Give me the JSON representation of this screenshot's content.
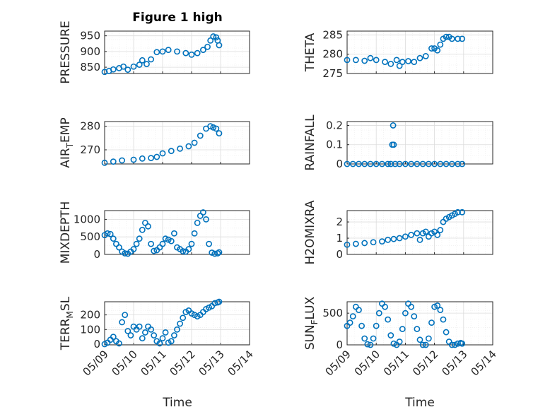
{
  "figure": {
    "title": "Figure 1 high"
  },
  "colors": {
    "marker": "#0072BD",
    "axis": "#262626"
  },
  "x_ticks": [
    "05/09",
    "05/10",
    "05/11",
    "05/12",
    "05/13",
    "05/14"
  ],
  "chart_data": [
    {
      "type": "scatter",
      "ylabel": "PRESSURE",
      "ylim": [
        830,
        965
      ],
      "yticks": [
        850,
        900,
        950
      ],
      "x_range": [
        "05/09",
        "05/14"
      ],
      "grid": true,
      "marker": "circle",
      "x": [
        0,
        0.15,
        0.3,
        0.5,
        0.65,
        0.8,
        1.0,
        1.2,
        1.3,
        1.45,
        1.6,
        1.8,
        2.0,
        2.2,
        2.5,
        2.8,
        3.0,
        3.2,
        3.4,
        3.55,
        3.65,
        3.75,
        3.85,
        3.9,
        3.95
      ],
      "y": [
        835,
        838,
        843,
        847,
        852,
        842,
        852,
        858,
        872,
        860,
        875,
        898,
        900,
        905,
        900,
        895,
        890,
        895,
        905,
        915,
        935,
        948,
        945,
        935,
        920
      ]
    },
    {
      "type": "scatter",
      "ylabel": "THETA",
      "ylim": [
        275,
        286
      ],
      "yticks": [
        275,
        280,
        285
      ],
      "x_range": [
        "05/09",
        "05/14"
      ],
      "grid": true,
      "marker": "circle",
      "x": [
        0,
        0.3,
        0.6,
        0.8,
        1.0,
        1.3,
        1.5,
        1.7,
        1.8,
        1.9,
        2.1,
        2.3,
        2.5,
        2.7,
        2.9,
        3.0,
        3.1,
        3.2,
        3.3,
        3.4,
        3.5,
        3.6,
        3.8,
        3.95
      ],
      "y": [
        278.5,
        278.5,
        278.3,
        279,
        278.5,
        278,
        277.5,
        278.5,
        277,
        278,
        278.2,
        278,
        279,
        279.5,
        281.5,
        281.5,
        281,
        282.5,
        284,
        284.5,
        284.5,
        284,
        284,
        284
      ]
    },
    {
      "type": "scatter",
      "ylabel": "AIR_TEMP",
      "ylim": [
        264,
        282
      ],
      "yticks": [
        270,
        280
      ],
      "x_range": [
        "05/09",
        "05/14"
      ],
      "grid": true,
      "marker": "circle",
      "x": [
        0,
        0.3,
        0.6,
        1.0,
        1.3,
        1.6,
        1.8,
        2.0,
        2.3,
        2.6,
        2.9,
        3.1,
        3.3,
        3.5,
        3.65,
        3.75,
        3.85,
        3.95
      ],
      "y": [
        264.5,
        265,
        265.5,
        265.8,
        266.3,
        266.5,
        267,
        268.5,
        269.5,
        270.5,
        271.5,
        273,
        276,
        279,
        280,
        279.5,
        279,
        277
      ]
    },
    {
      "type": "scatter",
      "ylabel": "RAINFALL",
      "ylim": [
        0,
        0.22
      ],
      "yticks": [
        0,
        0.1,
        0.2
      ],
      "x_range": [
        "05/09",
        "05/14"
      ],
      "grid": true,
      "marker": "circle",
      "x": [
        0,
        0.2,
        0.4,
        0.6,
        0.8,
        1.0,
        1.2,
        1.4,
        1.5,
        1.55,
        1.58,
        1.6,
        1.65,
        1.8,
        2.0,
        2.2,
        2.4,
        2.6,
        2.8,
        3.0,
        3.2,
        3.4,
        3.6,
        3.8,
        3.95
      ],
      "y": [
        0,
        0,
        0,
        0,
        0,
        0,
        0,
        0,
        0,
        0.1,
        0.2,
        0.1,
        0,
        0,
        0,
        0,
        0,
        0,
        0,
        0,
        0,
        0,
        0,
        0,
        0
      ]
    },
    {
      "type": "scatter",
      "ylabel": "MIXDEPTH",
      "ylim": [
        0,
        1250
      ],
      "yticks": [
        0,
        500,
        1000
      ],
      "x_range": [
        "05/09",
        "05/14"
      ],
      "grid": true,
      "marker": "circle",
      "x": [
        0,
        0.1,
        0.2,
        0.3,
        0.4,
        0.5,
        0.6,
        0.7,
        0.8,
        0.9,
        1.0,
        1.1,
        1.2,
        1.3,
        1.4,
        1.5,
        1.6,
        1.7,
        1.8,
        1.9,
        2.0,
        2.1,
        2.2,
        2.3,
        2.4,
        2.5,
        2.6,
        2.7,
        2.8,
        2.9,
        3.0,
        3.1,
        3.2,
        3.3,
        3.4,
        3.5,
        3.6,
        3.7,
        3.8,
        3.9,
        3.95
      ],
      "y": [
        550,
        600,
        580,
        450,
        300,
        200,
        80,
        30,
        20,
        80,
        150,
        300,
        450,
        700,
        900,
        800,
        300,
        100,
        120,
        200,
        300,
        450,
        420,
        380,
        600,
        200,
        150,
        90,
        80,
        150,
        300,
        600,
        900,
        1100,
        1200,
        1000,
        300,
        50,
        20,
        30,
        60
      ]
    },
    {
      "type": "scatter",
      "ylabel": "H2OMIXRA",
      "ylim": [
        0,
        2.7
      ],
      "yticks": [
        0,
        1,
        2
      ],
      "x_range": [
        "05/09",
        "05/14"
      ],
      "grid": true,
      "marker": "circle",
      "x": [
        0,
        0.3,
        0.6,
        0.9,
        1.2,
        1.4,
        1.6,
        1.8,
        2.0,
        2.2,
        2.4,
        2.5,
        2.6,
        2.7,
        2.8,
        2.9,
        3.0,
        3.1,
        3.2,
        3.3,
        3.4,
        3.5,
        3.6,
        3.7,
        3.8,
        3.95
      ],
      "y": [
        0.6,
        0.65,
        0.7,
        0.75,
        0.8,
        0.9,
        0.95,
        1.0,
        1.1,
        1.2,
        1.3,
        0.9,
        1.3,
        1.4,
        1.1,
        1.3,
        1.4,
        1.2,
        1.5,
        2.0,
        2.2,
        2.3,
        2.4,
        2.5,
        2.6,
        2.6
      ]
    },
    {
      "type": "scatter",
      "ylabel": "TERR_MSL",
      "ylim": [
        -5,
        290
      ],
      "yticks": [
        0,
        100,
        200
      ],
      "x_range": [
        "05/09",
        "05/14"
      ],
      "grid": true,
      "marker": "circle",
      "x": [
        0,
        0.1,
        0.2,
        0.3,
        0.4,
        0.5,
        0.6,
        0.7,
        0.8,
        0.9,
        1.0,
        1.1,
        1.2,
        1.3,
        1.4,
        1.5,
        1.6,
        1.7,
        1.8,
        1.9,
        2.0,
        2.1,
        2.2,
        2.3,
        2.4,
        2.5,
        2.6,
        2.7,
        2.8,
        2.9,
        3.0,
        3.1,
        3.2,
        3.3,
        3.4,
        3.5,
        3.6,
        3.7,
        3.8,
        3.9,
        3.95
      ],
      "y": [
        0,
        10,
        30,
        50,
        20,
        5,
        150,
        200,
        90,
        60,
        120,
        100,
        120,
        40,
        80,
        120,
        100,
        60,
        20,
        5,
        40,
        80,
        10,
        20,
        60,
        100,
        140,
        180,
        220,
        230,
        210,
        200,
        190,
        200,
        220,
        240,
        250,
        260,
        280,
        285,
        290
      ]
    },
    {
      "type": "scatter",
      "ylabel": "SUN_FLUX",
      "ylim": [
        0,
        680
      ],
      "yticks": [
        0,
        500
      ],
      "x_range": [
        "05/09",
        "05/14"
      ],
      "grid": true,
      "marker": "circle",
      "x": [
        0,
        0.1,
        0.2,
        0.3,
        0.4,
        0.5,
        0.6,
        0.7,
        0.8,
        0.9,
        1.0,
        1.1,
        1.2,
        1.3,
        1.4,
        1.5,
        1.6,
        1.7,
        1.8,
        1.9,
        2.0,
        2.1,
        2.2,
        2.3,
        2.4,
        2.5,
        2.6,
        2.7,
        2.8,
        2.9,
        3.0,
        3.1,
        3.2,
        3.3,
        3.4,
        3.5,
        3.6,
        3.7,
        3.8,
        3.9,
        3.95
      ],
      "y": [
        300,
        350,
        450,
        600,
        550,
        300,
        100,
        10,
        0,
        100,
        300,
        500,
        650,
        600,
        400,
        150,
        20,
        0,
        50,
        250,
        500,
        650,
        600,
        450,
        250,
        80,
        0,
        0,
        100,
        350,
        600,
        620,
        550,
        400,
        200,
        50,
        0,
        0,
        20,
        30,
        20
      ]
    }
  ],
  "xlabel": "Time"
}
